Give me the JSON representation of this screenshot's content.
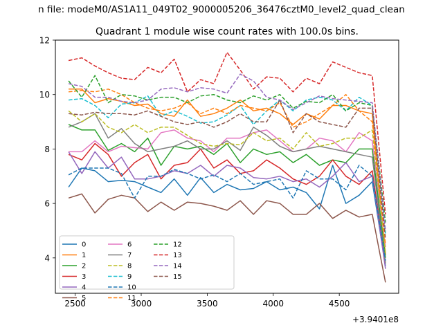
{
  "chart_data": {
    "type": "line",
    "suptitle": "n file: modeM0/AS1A11_049T02_9000005206_36476cztM0_level2_quad_clean",
    "title": "Quadrant 1 module wise count rates with 100.0s bins.",
    "xlabel": "",
    "ylabel": "",
    "offset_label": "+3.9401e8",
    "xlim": [
      2350,
      4950
    ],
    "ylim": [
      2.7,
      12
    ],
    "xticks": [
      2500,
      3000,
      3500,
      4000,
      4500
    ],
    "yticks": [
      4,
      6,
      8,
      10,
      12
    ],
    "x": [
      2450,
      2550,
      2650,
      2750,
      2850,
      2950,
      3050,
      3150,
      3250,
      3350,
      3450,
      3550,
      3650,
      3750,
      3850,
      3950,
      4050,
      4150,
      4250,
      4350,
      4450,
      4550,
      4650,
      4750,
      4850
    ],
    "legend_ncol": 3,
    "legend_loc": "lower-left",
    "series": [
      {
        "name": "0",
        "color": "#1f77b4",
        "dash": "solid",
        "values": [
          6.6,
          7.3,
          7.2,
          6.8,
          6.85,
          6.8,
          6.6,
          6.4,
          6.9,
          6.3,
          6.95,
          6.4,
          6.7,
          6.5,
          6.55,
          6.8,
          6.5,
          6.6,
          6.4,
          5.8,
          7.4,
          6.0,
          6.3,
          6.8,
          3.7
        ]
      },
      {
        "name": "1",
        "color": "#ff7f0e",
        "dash": "solid",
        "values": [
          10.2,
          10.2,
          9.7,
          9.85,
          9.75,
          9.6,
          9.65,
          9.3,
          9.2,
          9.8,
          9.2,
          9.3,
          9.5,
          9.8,
          9.4,
          9.5,
          9.3,
          8.9,
          9.3,
          9.1,
          9.6,
          9.6,
          9.4,
          9.3,
          4.1
        ]
      },
      {
        "name": "2",
        "color": "#2ca02c",
        "dash": "solid",
        "values": [
          8.9,
          8.7,
          8.7,
          7.95,
          8.2,
          7.9,
          8.4,
          7.4,
          8.1,
          8.0,
          8.1,
          7.8,
          8.2,
          7.5,
          8.0,
          7.8,
          7.9,
          7.5,
          7.8,
          7.4,
          7.6,
          7.5,
          8.0,
          8.0,
          4.0
        ]
      },
      {
        "name": "3",
        "color": "#d62728",
        "dash": "solid",
        "values": [
          7.8,
          7.6,
          8.2,
          7.8,
          7.0,
          7.5,
          7.8,
          6.9,
          7.4,
          7.5,
          8.0,
          7.3,
          7.6,
          7.1,
          7.2,
          7.6,
          7.3,
          6.9,
          6.7,
          7.0,
          7.6,
          7.0,
          6.7,
          7.2,
          3.8
        ]
      },
      {
        "name": "4",
        "color": "#9467bd",
        "dash": "solid",
        "values": [
          7.9,
          7.1,
          7.9,
          7.3,
          7.7,
          6.9,
          6.9,
          7.0,
          7.2,
          7.1,
          7.4,
          7.0,
          7.4,
          7.3,
          6.95,
          6.9,
          7.0,
          6.8,
          6.9,
          6.6,
          7.0,
          7.5,
          6.8,
          7.0,
          3.6
        ]
      },
      {
        "name": "5",
        "color": "#8c564b",
        "dash": "solid",
        "values": [
          6.2,
          6.35,
          5.65,
          6.15,
          6.3,
          6.2,
          5.7,
          6.05,
          5.75,
          6.05,
          6.0,
          5.9,
          5.75,
          6.1,
          5.6,
          6.1,
          6.0,
          5.6,
          5.6,
          6.0,
          5.45,
          5.75,
          5.5,
          5.6,
          3.1
        ]
      },
      {
        "name": "6",
        "color": "#e377c2",
        "dash": "solid",
        "values": [
          7.9,
          7.9,
          8.3,
          7.9,
          8.1,
          8.05,
          8.0,
          8.6,
          8.7,
          8.4,
          8.3,
          7.9,
          8.4,
          8.4,
          8.6,
          8.7,
          8.3,
          7.9,
          8.0,
          8.4,
          8.3,
          7.9,
          8.6,
          8.3,
          4.4
        ]
      },
      {
        "name": "7",
        "color": "#7f7f7f",
        "dash": "solid",
        "values": [
          8.8,
          9.0,
          9.3,
          8.4,
          8.75,
          8.2,
          7.9,
          8.0,
          8.1,
          8.3,
          8.0,
          8.0,
          8.3,
          7.95,
          8.8,
          8.5,
          8.1,
          7.9,
          8.0,
          8.1,
          8.0,
          7.9,
          7.8,
          7.7,
          3.8
        ]
      },
      {
        "name": "8",
        "color": "#bcbd22",
        "dash": "dashed",
        "values": [
          9.4,
          9.0,
          9.3,
          8.8,
          8.6,
          8.9,
          8.6,
          8.8,
          8.8,
          8.5,
          8.2,
          8.1,
          8.2,
          8.15,
          8.6,
          8.3,
          8.4,
          8.0,
          8.6,
          8.1,
          8.2,
          8.4,
          8.4,
          8.7,
          4.2
        ]
      },
      {
        "name": "9",
        "color": "#17becf",
        "dash": "dashed",
        "values": [
          9.8,
          9.85,
          9.6,
          9.15,
          9.65,
          9.7,
          9.95,
          9.2,
          9.4,
          9.2,
          8.95,
          9.0,
          9.25,
          9.6,
          8.9,
          9.4,
          9.8,
          9.4,
          9.8,
          9.9,
          9.8,
          9.4,
          9.9,
          9.6,
          4.9
        ]
      },
      {
        "name": "10",
        "color": "#1f77b4",
        "dash": "dashed",
        "values": [
          7.05,
          7.3,
          7.3,
          7.3,
          7.1,
          6.2,
          7.0,
          7.0,
          7.25,
          7.1,
          6.9,
          7.05,
          6.8,
          7.1,
          6.7,
          6.8,
          6.9,
          6.2,
          7.2,
          6.9,
          6.9,
          6.5,
          7.4,
          7.0,
          3.9
        ]
      },
      {
        "name": "11",
        "color": "#ff7f0e",
        "dash": "dashed",
        "values": [
          10.1,
          10.15,
          10.1,
          10.2,
          10.0,
          9.7,
          9.5,
          9.4,
          9.5,
          9.7,
          9.3,
          9.5,
          9.3,
          9.6,
          9.5,
          9.4,
          9.7,
          8.8,
          9.0,
          9.3,
          9.6,
          10.0,
          9.4,
          9.0,
          4.5
        ]
      },
      {
        "name": "12",
        "color": "#2ca02c",
        "dash": "dashed",
        "values": [
          10.5,
          9.9,
          10.7,
          9.7,
          10.0,
          9.95,
          9.8,
          9.9,
          9.9,
          9.7,
          9.95,
          10.0,
          9.8,
          9.7,
          9.95,
          9.8,
          10.0,
          9.5,
          9.75,
          9.7,
          10.0,
          9.4,
          9.7,
          9.6,
          5.3
        ]
      },
      {
        "name": "13",
        "color": "#d62728",
        "dash": "dashed",
        "values": [
          11.25,
          11.35,
          11.05,
          10.8,
          10.6,
          10.55,
          11.0,
          10.8,
          11.3,
          10.1,
          10.55,
          10.4,
          11.55,
          10.9,
          10.2,
          10.65,
          10.6,
          10.1,
          10.6,
          10.4,
          11.2,
          11.0,
          10.8,
          10.7,
          5.6
        ]
      },
      {
        "name": "14",
        "color": "#9467bd",
        "dash": "dashed",
        "values": [
          10.4,
          10.3,
          9.9,
          9.9,
          9.75,
          9.7,
          9.8,
          10.2,
          10.25,
          10.1,
          10.25,
          10.2,
          10.05,
          10.75,
          10.5,
          9.9,
          9.8,
          9.45,
          9.7,
          9.95,
          9.85,
          9.8,
          9.75,
          9.7,
          5.0
        ]
      },
      {
        "name": "15",
        "color": "#8c564b",
        "dash": "dashed",
        "values": [
          9.3,
          9.25,
          9.35,
          9.3,
          9.3,
          9.25,
          9.4,
          9.2,
          9.0,
          8.9,
          9.0,
          8.8,
          9.0,
          9.3,
          9.0,
          9.0,
          9.8,
          8.6,
          9.3,
          9.0,
          8.9,
          8.8,
          9.5,
          9.5,
          4.7
        ]
      }
    ]
  }
}
